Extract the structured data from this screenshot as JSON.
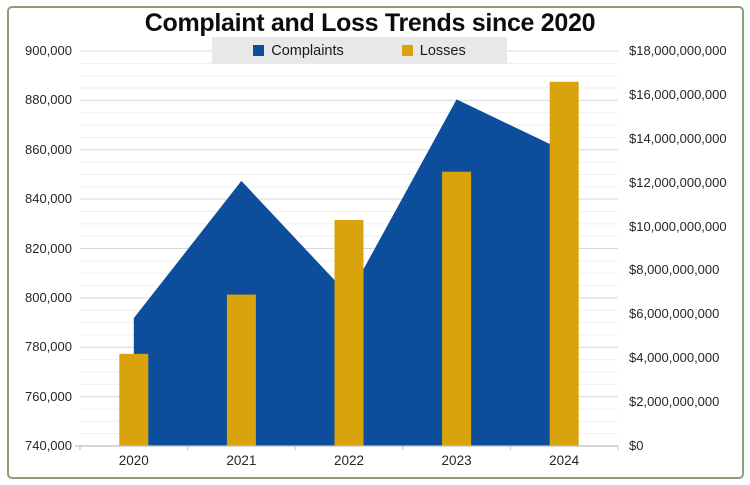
{
  "title": "Complaint and Loss Trends since 2020",
  "frame": {
    "border_color": "#8BA174"
  },
  "legend": {
    "background": "#E8E8E8",
    "items": [
      {
        "label": "Complaints",
        "color": "#0C4E9C"
      },
      {
        "label": "Losses",
        "color": "#D9A40B"
      }
    ]
  },
  "chart_data": {
    "type": "combo",
    "title": "Complaint and Loss Trends since 2020",
    "categories": [
      "2020",
      "2021",
      "2022",
      "2023",
      "2024"
    ],
    "series": [
      {
        "name": "Complaints",
        "type": "area",
        "axis": "left",
        "color": "#0C4E9C",
        "values": [
          791790,
          847376,
          800944,
          880418,
          859532
        ]
      },
      {
        "name": "Losses",
        "type": "bar",
        "axis": "right",
        "color": "#D9A40B",
        "values": [
          4200000000,
          6900000000,
          10300000000,
          12500000000,
          16600000000
        ]
      }
    ],
    "left_axis": {
      "min": 740000,
      "max": 900000,
      "step": 20000,
      "tick_labels": [
        "900,000",
        "880,000",
        "860,000",
        "840,000",
        "820,000",
        "800,000",
        "780,000",
        "760,000",
        "740,000"
      ]
    },
    "right_axis": {
      "min": 0,
      "max": 18000000000,
      "step": 2000000000,
      "tick_labels": [
        "$18,000,000,000",
        "$16,000,000,000",
        "$14,000,000,000",
        "$12,000,000,000",
        "$10,000,000,000",
        "$8,000,000,000",
        "$6,000,000,000",
        "$4,000,000,000",
        "$2,000,000,000",
        "$0"
      ]
    },
    "grid": {
      "major": true,
      "minor": true,
      "minor_step_left": 5000,
      "major_color": "#D8D8D8",
      "minor_color": "#EFEFEF",
      "axis_color": "#BFBFBF"
    },
    "legend_position": "top"
  }
}
